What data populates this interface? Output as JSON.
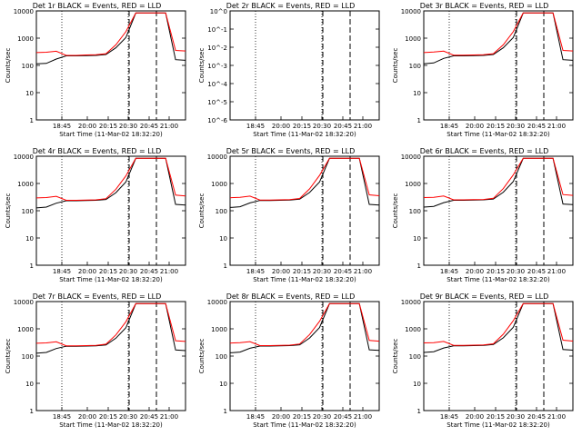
{
  "chart_data": [
    {
      "type": "line",
      "title": "Det 1r BLACK = Events, RED = LLD",
      "xlabel": "Start Time (11-Mar-02 18:32:20)",
      "ylabel": "Counts/sec",
      "x_ticks": [
        "18:45",
        "20:00",
        "20:15",
        "20:30",
        "20:45",
        "21:00"
      ],
      "y_ticks": [
        "1",
        "10",
        "100",
        "1000",
        "10000"
      ],
      "ylim": [
        1,
        12000
      ],
      "yscale": "log",
      "series": [
        {
          "name": "BLACK = Events",
          "color": "#000000",
          "values": [
            125,
            130,
            190,
            250,
            250,
            255,
            260,
            280,
            500,
            1200,
            10000,
            10000,
            10000,
            10000,
            180,
            170
          ]
        },
        {
          "name": "RED = LLD",
          "color": "#ff0000",
          "values": [
            330,
            340,
            370,
            260,
            260,
            270,
            275,
            300,
            650,
            2000,
            10000,
            10000,
            10000,
            10000,
            400,
            380
          ]
        }
      ]
    },
    {
      "type": "line",
      "title": "Det 2r BLACK = Events, RED = LLD",
      "xlabel": "Start Time (11-Mar-02 18:32:20)",
      "ylabel": "Counts/sec",
      "x_ticks": [
        "18:45",
        "20:00",
        "20:15",
        "20:30",
        "20:45",
        "21:00"
      ],
      "y_ticks": [
        "10^-6",
        "10^-5",
        "10^-4",
        "10^-3",
        "10^-2",
        "10^-1",
        "10^0"
      ],
      "ylim": [
        1e-06,
        1
      ],
      "yscale": "log",
      "series": [
        {
          "name": "BLACK = Events",
          "color": "#000000",
          "values": []
        },
        {
          "name": "RED = LLD",
          "color": "#ff0000",
          "values": []
        }
      ]
    },
    {
      "type": "line",
      "title": "Det 3r BLACK = Events, RED = LLD",
      "xlabel": "Start Time (11-Mar-02 18:32:20)",
      "ylabel": "Counts/sec",
      "x_ticks": [
        "18:45",
        "20:00",
        "20:15",
        "20:30",
        "20:45",
        "21:00"
      ],
      "y_ticks": [
        "1",
        "10",
        "100",
        "1000",
        "10000"
      ],
      "ylim": [
        1,
        12000
      ],
      "yscale": "log",
      "series": [
        {
          "name": "BLACK = Events",
          "color": "#000000",
          "values": [
            125,
            135,
            200,
            250,
            250,
            255,
            260,
            280,
            500,
            1200,
            10000,
            10000,
            10000,
            10000,
            180,
            170
          ]
        },
        {
          "name": "RED = LLD",
          "color": "#ff0000",
          "values": [
            330,
            345,
            375,
            265,
            265,
            270,
            275,
            300,
            650,
            2000,
            10000,
            10000,
            10000,
            10000,
            400,
            380
          ]
        }
      ]
    },
    {
      "type": "line",
      "title": "Det 4r BLACK = Events, RED = LLD",
      "xlabel": "Start Time (11-Mar-02 18:32:20)",
      "ylabel": "Counts/sec",
      "x_ticks": [
        "18:45",
        "20:00",
        "20:15",
        "20:30",
        "20:45",
        "21:00"
      ],
      "y_ticks": [
        "1",
        "10",
        "100",
        "1000",
        "10000"
      ],
      "ylim": [
        1,
        12000
      ],
      "yscale": "log",
      "series": [
        {
          "name": "BLACK = Events",
          "color": "#000000",
          "values": [
            140,
            150,
            210,
            260,
            260,
            265,
            270,
            290,
            520,
            1300,
            10000,
            10000,
            10000,
            10000,
            190,
            180
          ]
        },
        {
          "name": "RED = LLD",
          "color": "#ff0000",
          "values": [
            330,
            340,
            380,
            270,
            270,
            275,
            280,
            310,
            700,
            2200,
            10000,
            10000,
            10000,
            10000,
            420,
            390
          ]
        }
      ]
    },
    {
      "type": "line",
      "title": "Det 5r BLACK = Events, RED = LLD",
      "xlabel": "Start Time (11-Mar-02 18:32:20)",
      "ylabel": "Counts/sec",
      "x_ticks": [
        "18:45",
        "20:00",
        "20:15",
        "20:30",
        "20:45",
        "21:00"
      ],
      "y_ticks": [
        "1",
        "10",
        "100",
        "1000",
        "10000"
      ],
      "ylim": [
        1,
        12000
      ],
      "yscale": "log",
      "series": [
        {
          "name": "BLACK = Events",
          "color": "#000000",
          "values": [
            145,
            155,
            215,
            265,
            265,
            270,
            275,
            295,
            530,
            1300,
            10000,
            10000,
            10000,
            10000,
            190,
            180
          ]
        },
        {
          "name": "RED = LLD",
          "color": "#ff0000",
          "values": [
            335,
            345,
            385,
            275,
            275,
            280,
            285,
            315,
            720,
            2300,
            10000,
            10000,
            10000,
            10000,
            430,
            400
          ]
        }
      ]
    },
    {
      "type": "line",
      "title": "Det 6r BLACK = Events, RED = LLD",
      "xlabel": "Start Time (11-Mar-02 18:32:20)",
      "ylabel": "Counts/sec",
      "x_ticks": [
        "18:45",
        "20:00",
        "20:15",
        "20:30",
        "20:45",
        "21:00"
      ],
      "y_ticks": [
        "1",
        "10",
        "100",
        "1000",
        "10000"
      ],
      "ylim": [
        1,
        12000
      ],
      "yscale": "log",
      "series": [
        {
          "name": "BLACK = Events",
          "color": "#000000",
          "values": [
            150,
            160,
            220,
            270,
            270,
            275,
            280,
            300,
            540,
            1350,
            10000,
            10000,
            10000,
            10000,
            195,
            185
          ]
        },
        {
          "name": "RED = LLD",
          "color": "#ff0000",
          "values": [
            340,
            350,
            390,
            280,
            280,
            285,
            290,
            320,
            740,
            2400,
            10000,
            10000,
            10000,
            10000,
            440,
            410
          ]
        }
      ]
    },
    {
      "type": "line",
      "title": "Det 7r BLACK = Events, RED = LLD",
      "xlabel": "Start Time (11-Mar-02 18:32:20)",
      "ylabel": "Counts/sec",
      "x_ticks": [
        "18:45",
        "20:00",
        "20:15",
        "20:30",
        "20:45",
        "21:00"
      ],
      "y_ticks": [
        "1",
        "10",
        "100",
        "1000",
        "10000"
      ],
      "ylim": [
        1,
        12000
      ],
      "yscale": "log",
      "series": [
        {
          "name": "BLACK = Events",
          "color": "#000000",
          "values": [
            140,
            150,
            210,
            255,
            255,
            260,
            265,
            285,
            510,
            1250,
            10000,
            10000,
            10000,
            10000,
            185,
            175
          ]
        },
        {
          "name": "RED = LLD",
          "color": "#ff0000",
          "values": [
            330,
            340,
            375,
            265,
            265,
            270,
            275,
            305,
            680,
            2100,
            10000,
            10000,
            10000,
            10000,
            410,
            385
          ]
        }
      ]
    },
    {
      "type": "line",
      "title": "Det 8r BLACK = Events, RED = LLD",
      "xlabel": "Start Time (11-Mar-02 18:32:20)",
      "ylabel": "Counts/sec",
      "x_ticks": [
        "18:45",
        "20:00",
        "20:15",
        "20:30",
        "20:45",
        "21:00"
      ],
      "y_ticks": [
        "1",
        "10",
        "100",
        "1000",
        "10000"
      ],
      "ylim": [
        1,
        12000
      ],
      "yscale": "log",
      "series": [
        {
          "name": "BLACK = Events",
          "color": "#000000",
          "values": [
            145,
            155,
            215,
            260,
            260,
            265,
            270,
            290,
            520,
            1280,
            10000,
            10000,
            10000,
            10000,
            188,
            178
          ]
        },
        {
          "name": "RED = LLD",
          "color": "#ff0000",
          "values": [
            335,
            345,
            380,
            270,
            270,
            275,
            280,
            310,
            700,
            2200,
            10000,
            10000,
            10000,
            10000,
            420,
            395
          ]
        }
      ]
    },
    {
      "type": "line",
      "title": "Det 9r BLACK = Events, RED = LLD",
      "xlabel": "Start Time (11-Mar-02 18:32:20)",
      "ylabel": "Counts/sec",
      "x_ticks": [
        "18:45",
        "20:00",
        "20:15",
        "20:30",
        "20:45",
        "21:00"
      ],
      "y_ticks": [
        "1",
        "10",
        "100",
        "1000",
        "10000"
      ],
      "ylim": [
        1,
        12000
      ],
      "yscale": "log",
      "series": [
        {
          "name": "BLACK = Events",
          "color": "#000000",
          "values": [
            150,
            160,
            220,
            265,
            265,
            270,
            275,
            295,
            530,
            1300,
            10000,
            10000,
            10000,
            10000,
            192,
            182
          ]
        },
        {
          "name": "RED = LLD",
          "color": "#ff0000",
          "values": [
            340,
            350,
            385,
            275,
            275,
            280,
            285,
            315,
            720,
            2300,
            10000,
            10000,
            10000,
            10000,
            430,
            400
          ]
        }
      ]
    }
  ]
}
